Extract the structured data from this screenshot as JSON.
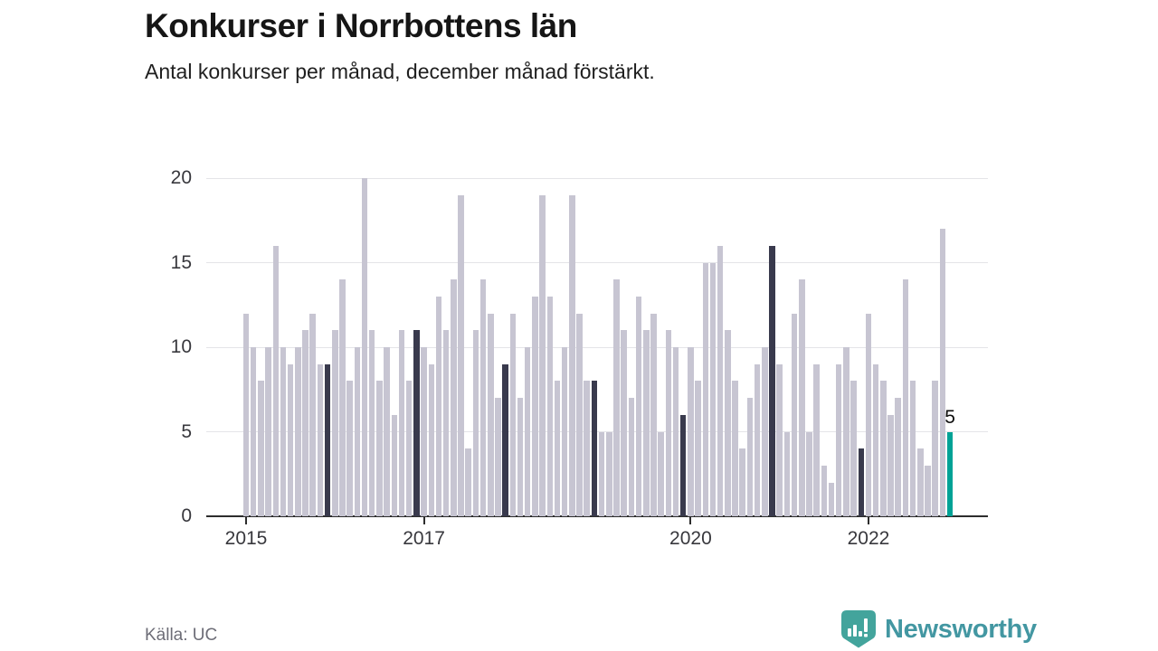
{
  "header": {
    "title": "Konkurser i Norrbottens län",
    "subtitle": "Antal konkurser per månad, december månad förstärkt."
  },
  "footer": {
    "source_label": "Källa: UC",
    "brand_name": "Newsworthy",
    "brand_badge_color": "#43a49c",
    "brand_text_color": "#4397a2"
  },
  "chart_data": {
    "type": "bar",
    "title": "Konkurser i Norrbottens län",
    "subtitle": "Antal konkurser per månad, december månad förstärkt.",
    "unit": "konkurser per månad",
    "start_month": "2015-01",
    "years": [
      {
        "year": 2015,
        "values": [
          12,
          10,
          8,
          10,
          16,
          10,
          9,
          10,
          11,
          12,
          9,
          9
        ]
      },
      {
        "year": 2016,
        "values": [
          11,
          14,
          8,
          10,
          20,
          11,
          8,
          10,
          6,
          11,
          8,
          11
        ]
      },
      {
        "year": 2017,
        "values": [
          10,
          9,
          13,
          11,
          14,
          19,
          4,
          11,
          14,
          12,
          7,
          9
        ]
      },
      {
        "year": 2018,
        "values": [
          12,
          7,
          10,
          13,
          19,
          13,
          8,
          10,
          19,
          12,
          8,
          8
        ]
      },
      {
        "year": 2019,
        "values": [
          5,
          5,
          14,
          11,
          7,
          13,
          11,
          12,
          5,
          11,
          10,
          6
        ]
      },
      {
        "year": 2020,
        "values": [
          10,
          8,
          15,
          15,
          16,
          11,
          8,
          4,
          7,
          9,
          10,
          16
        ]
      },
      {
        "year": 2021,
        "values": [
          9,
          5,
          12,
          14,
          5,
          9,
          3,
          2,
          9,
          10,
          8,
          4
        ]
      },
      {
        "year": 2022,
        "values": [
          12,
          9,
          8,
          6,
          7,
          14,
          8,
          4,
          3,
          8,
          17,
          5
        ]
      }
    ],
    "highlight_rule": "december-months-dark, latest-month-teal",
    "annotation": {
      "text": "5",
      "month_offset": 95
    },
    "ylim": [
      0,
      20
    ],
    "yticks": [
      0,
      5,
      10,
      15,
      20
    ],
    "xticks": [
      {
        "label": "2015",
        "month_offset": 0
      },
      {
        "label": "2017",
        "month_offset": 24
      },
      {
        "label": "2020",
        "month_offset": 60
      },
      {
        "label": "2022",
        "month_offset": 84
      }
    ],
    "grid": "horizontal-only",
    "legend": "none",
    "colors": {
      "bar": "#c7c5d2",
      "december": "#393a4d",
      "latest": "#00a296",
      "gridline": "#e4e4e8",
      "axis": "#2d2d2d"
    }
  }
}
